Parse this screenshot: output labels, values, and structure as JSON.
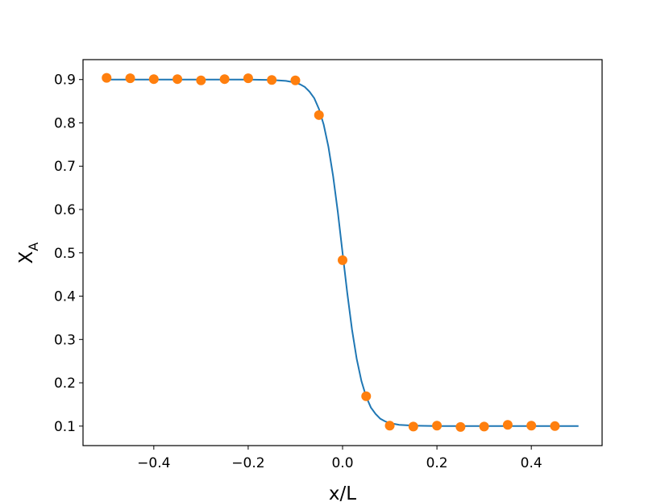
{
  "chart_data": {
    "type": "line",
    "xlabel": "x/L",
    "ylabel": "X",
    "ylabel_subscript": "A",
    "xlim": [
      -0.55,
      0.55
    ],
    "ylim": [
      0.055,
      0.946
    ],
    "xticks": [
      {
        "value": -0.4,
        "label": "−0.4"
      },
      {
        "value": -0.2,
        "label": "−0.2"
      },
      {
        "value": 0,
        "label": "0.0"
      },
      0.2,
      0.4
    ],
    "yticks": [
      0.1,
      0.2,
      0.3,
      0.4,
      0.5,
      0.6,
      0.7,
      0.8,
      0.9
    ],
    "series": [
      {
        "type": "line",
        "color": "#1f77b4",
        "x": [
          -0.5,
          -0.4,
          -0.3,
          -0.2,
          -0.15,
          -0.12,
          -0.1,
          -0.09,
          -0.08,
          -0.07,
          -0.06,
          -0.05,
          -0.04,
          -0.03,
          -0.02,
          -0.01,
          0,
          0.01,
          0.02,
          0.03,
          0.04,
          0.05,
          0.06,
          0.07,
          0.08,
          0.09,
          0.1,
          0.12,
          0.15,
          0.2,
          0.3,
          0.4,
          0.5
        ],
        "values": [
          0.9,
          0.9,
          0.9,
          0.9,
          0.899,
          0.897,
          0.893,
          0.889,
          0.883,
          0.872,
          0.857,
          0.832,
          0.796,
          0.745,
          0.677,
          0.594,
          0.5,
          0.407,
          0.323,
          0.255,
          0.204,
          0.168,
          0.143,
          0.128,
          0.117,
          0.111,
          0.107,
          0.103,
          0.101,
          0.1,
          0.1,
          0.1,
          0.1
        ]
      },
      {
        "type": "scatter",
        "color": "#ff7f0e",
        "x": [
          -0.5,
          -0.45,
          -0.4,
          -0.35,
          -0.3,
          -0.25,
          -0.2,
          -0.15,
          -0.1,
          -0.05,
          0,
          0.05,
          0.1,
          0.15,
          0.2,
          0.25,
          0.3,
          0.35,
          0.4,
          0.45
        ],
        "values": [
          0.904,
          0.903,
          0.901,
          0.901,
          0.898,
          0.901,
          0.903,
          0.899,
          0.898,
          0.818,
          0.483,
          0.169,
          0.101,
          0.099,
          0.101,
          0.098,
          0.099,
          0.103,
          0.101,
          0.1
        ]
      }
    ]
  }
}
